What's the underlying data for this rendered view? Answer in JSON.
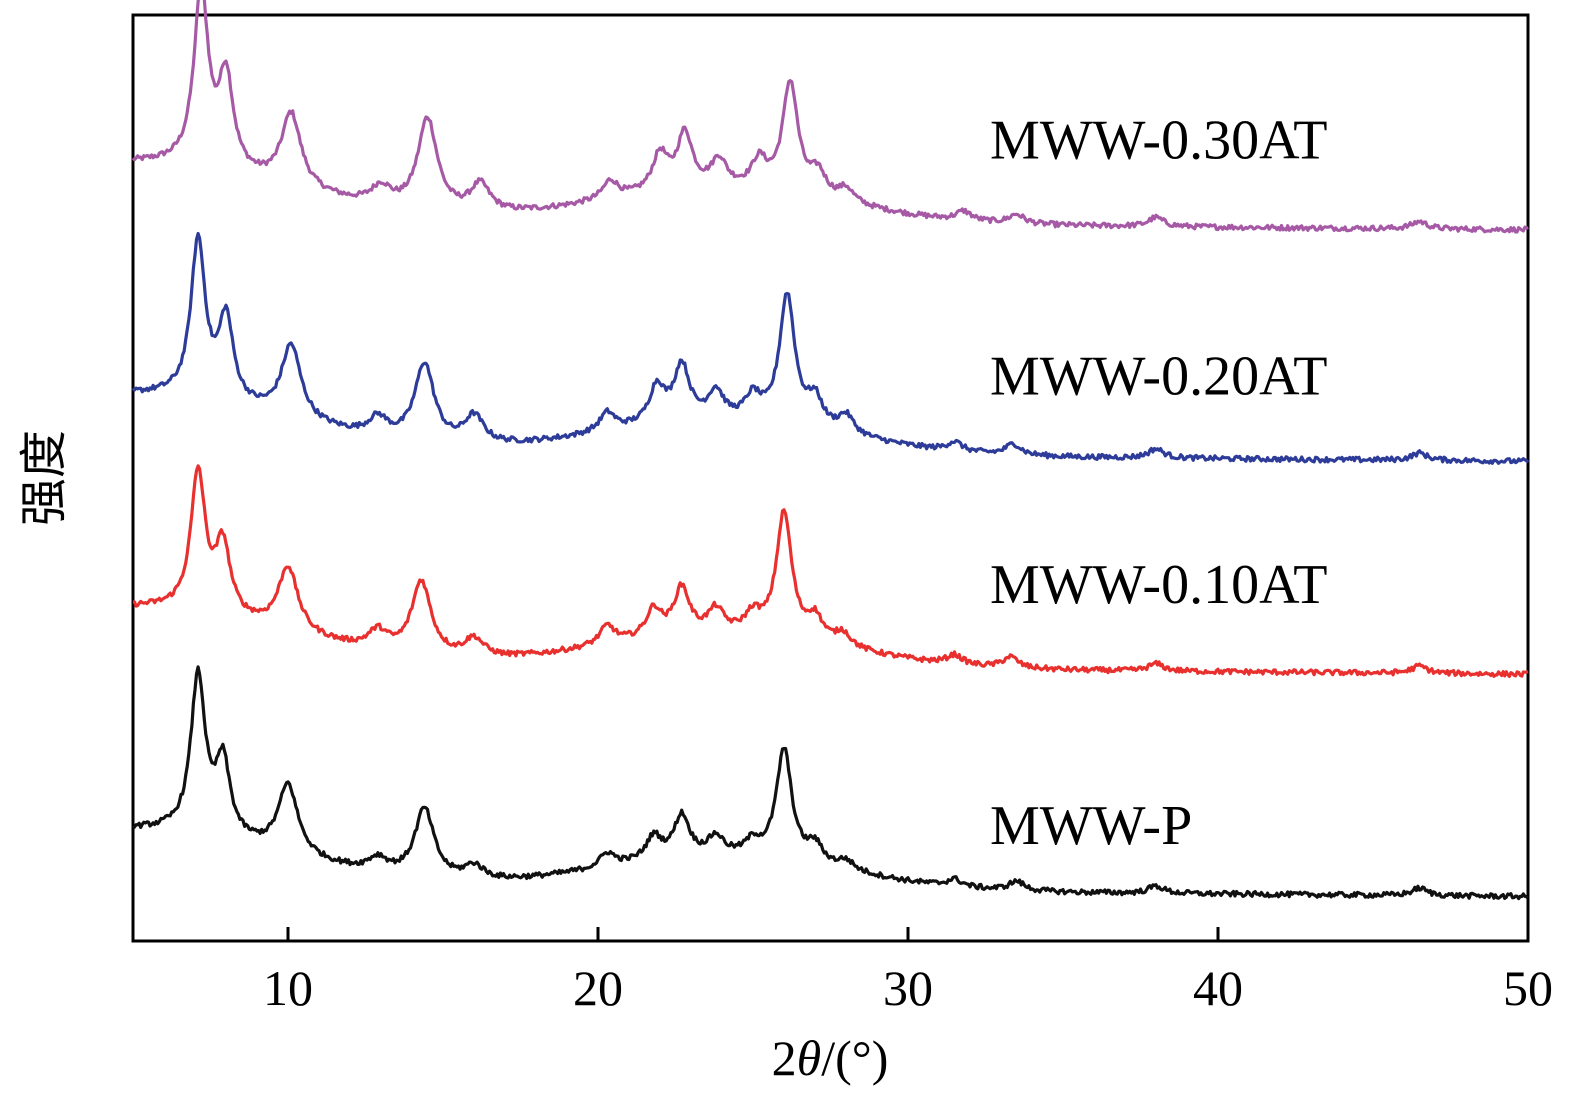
{
  "chart_data": {
    "type": "line",
    "title": "",
    "xlabel": "2θ/(°)",
    "ylabel": "强度",
    "xlim": [
      5,
      50
    ],
    "ylim": [
      0,
      100
    ],
    "xticks": [
      10,
      20,
      30,
      40,
      50
    ],
    "grid": false,
    "legend": "inline labels at right",
    "series": [
      {
        "name": "MWW-0.30AT",
        "color": "#a65aa6",
        "baseline": 78,
        "peaks": [
          [
            7.2,
            19
          ],
          [
            8.0,
            10
          ],
          [
            10.1,
            8
          ],
          [
            13.0,
            2
          ],
          [
            14.5,
            10
          ],
          [
            16.2,
            3
          ],
          [
            20.4,
            2
          ],
          [
            22.0,
            4
          ],
          [
            22.8,
            6
          ],
          [
            23.9,
            3
          ],
          [
            25.2,
            3
          ],
          [
            26.2,
            12
          ],
          [
            27.1,
            2.5
          ],
          [
            28.0,
            1.5
          ],
          [
            31.8,
            1
          ],
          [
            33.5,
            1
          ],
          [
            38.0,
            1
          ],
          [
            46.5,
            0.8
          ]
        ]
      },
      {
        "name": "MWW-0.20AT",
        "color": "#2e3c99",
        "baseline": 53,
        "peaks": [
          [
            7.1,
            17
          ],
          [
            8.0,
            9
          ],
          [
            10.1,
            8
          ],
          [
            12.9,
            2
          ],
          [
            14.4,
            8.5
          ],
          [
            16.0,
            3
          ],
          [
            20.3,
            2
          ],
          [
            21.9,
            4
          ],
          [
            22.7,
            6
          ],
          [
            23.8,
            3
          ],
          [
            25.0,
            2.5
          ],
          [
            26.1,
            14
          ],
          [
            27.0,
            3
          ],
          [
            28.0,
            2
          ],
          [
            31.5,
            1
          ],
          [
            33.4,
            1.2
          ],
          [
            38.0,
            1
          ],
          [
            46.5,
            0.8
          ]
        ]
      },
      {
        "name": "MWW-0.10AT",
        "color": "#e8302f",
        "baseline": 30,
        "peaks": [
          [
            7.1,
            15
          ],
          [
            7.9,
            7.5
          ],
          [
            10.0,
            7
          ],
          [
            12.9,
            2
          ],
          [
            14.3,
            8
          ],
          [
            16.0,
            2
          ],
          [
            20.3,
            2
          ],
          [
            21.8,
            3
          ],
          [
            22.7,
            5
          ],
          [
            23.8,
            2.5
          ],
          [
            25.0,
            2
          ],
          [
            26.0,
            13.5
          ],
          [
            27.0,
            2.5
          ],
          [
            27.9,
            1.5
          ],
          [
            31.5,
            1
          ],
          [
            33.3,
            1.2
          ],
          [
            38.0,
            0.8
          ],
          [
            46.5,
            0.8
          ]
        ]
      },
      {
        "name": "MWW-P",
        "color": "#111111",
        "baseline": 6,
        "peaks": [
          [
            7.1,
            17
          ],
          [
            7.9,
            8
          ],
          [
            10.0,
            7.5
          ],
          [
            12.9,
            1.5
          ],
          [
            14.4,
            7.5
          ],
          [
            16.0,
            1.5
          ],
          [
            20.3,
            1.5
          ],
          [
            21.8,
            2.5
          ],
          [
            22.7,
            4.5
          ],
          [
            23.8,
            2
          ],
          [
            25.0,
            1.5
          ],
          [
            26.0,
            12
          ],
          [
            27.0,
            2
          ],
          [
            28.0,
            1
          ],
          [
            31.5,
            0.8
          ],
          [
            33.5,
            1
          ],
          [
            38.0,
            0.8
          ],
          [
            46.5,
            0.8
          ]
        ]
      }
    ],
    "labels": [
      {
        "text": "MWW-0.30AT",
        "y": 84.5
      },
      {
        "text": "MWW-0.20AT",
        "y": 59
      },
      {
        "text": "MWW-0.10AT",
        "y": 36.5
      },
      {
        "text": "MWW-P",
        "y": 10.5
      }
    ]
  }
}
